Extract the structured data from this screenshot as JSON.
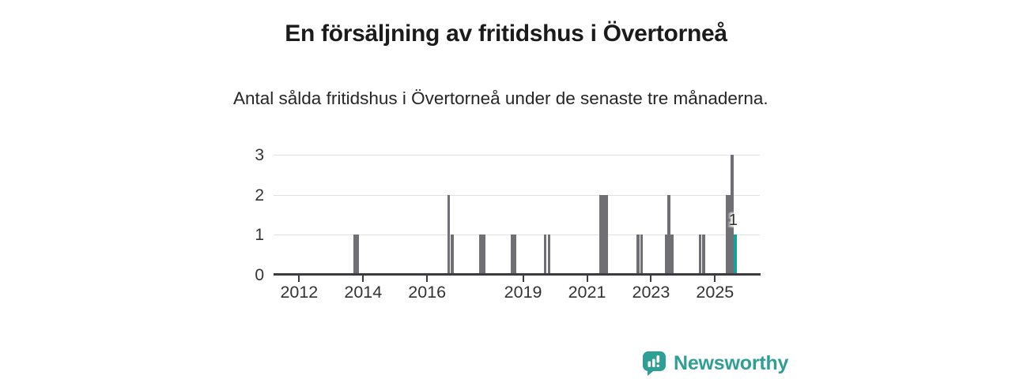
{
  "header": {
    "title": "En försäljning av fritidshus i Övertorneå",
    "subtitle": "Antal sålda fritidshus i Övertorneå under de senaste tre månaderna."
  },
  "chart_data": {
    "type": "bar",
    "title": "En försäljning av fritidshus i Övertorneå",
    "subtitle": "Antal sålda fritidshus i Övertorneå under de senaste tre månaderna.",
    "xlabel": "",
    "ylabel": "",
    "xlim": [
      2011.2,
      2026.4
    ],
    "ylim": [
      0,
      3
    ],
    "yticks": [
      0,
      1,
      2,
      3
    ],
    "xticks": [
      2012,
      2014,
      2016,
      2019,
      2021,
      2023,
      2025
    ],
    "grid": true,
    "legend": false,
    "bar_color": "#707074",
    "highlight_color": "#11a39a",
    "bars": [
      {
        "x": 2013.74,
        "y": 1
      },
      {
        "x": 2013.83,
        "y": 1
      },
      {
        "x": 2016.67,
        "y": 2
      },
      {
        "x": 2016.79,
        "y": 1
      },
      {
        "x": 2017.68,
        "y": 1
      },
      {
        "x": 2017.78,
        "y": 1
      },
      {
        "x": 2018.65,
        "y": 1
      },
      {
        "x": 2018.74,
        "y": 1
      },
      {
        "x": 2019.69,
        "y": 1
      },
      {
        "x": 2019.81,
        "y": 1
      },
      {
        "x": 2021.43,
        "y": 2
      },
      {
        "x": 2021.52,
        "y": 2
      },
      {
        "x": 2021.61,
        "y": 2
      },
      {
        "x": 2022.59,
        "y": 1
      },
      {
        "x": 2022.7,
        "y": 1
      },
      {
        "x": 2023.47,
        "y": 1
      },
      {
        "x": 2023.56,
        "y": 2
      },
      {
        "x": 2023.66,
        "y": 1
      },
      {
        "x": 2024.54,
        "y": 1
      },
      {
        "x": 2024.64,
        "y": 1
      },
      {
        "x": 2025.37,
        "y": 2
      },
      {
        "x": 2025.45,
        "y": 2
      },
      {
        "x": 2025.54,
        "y": 3
      },
      {
        "x": 2025.63,
        "y": 1,
        "highlight": true,
        "label": "1"
      }
    ]
  },
  "footer": {
    "brand": "Newsworthy",
    "brand_color": "#2f9e94",
    "logo_icon": "bar-chart-speech-bubble-icon"
  },
  "colors": {
    "bar_gray": "#707074",
    "bar_teal": "#11a39a",
    "axis": "#3c3c40",
    "gridline": "#e2e2e2",
    "brand_teal": "#2f9e94"
  }
}
